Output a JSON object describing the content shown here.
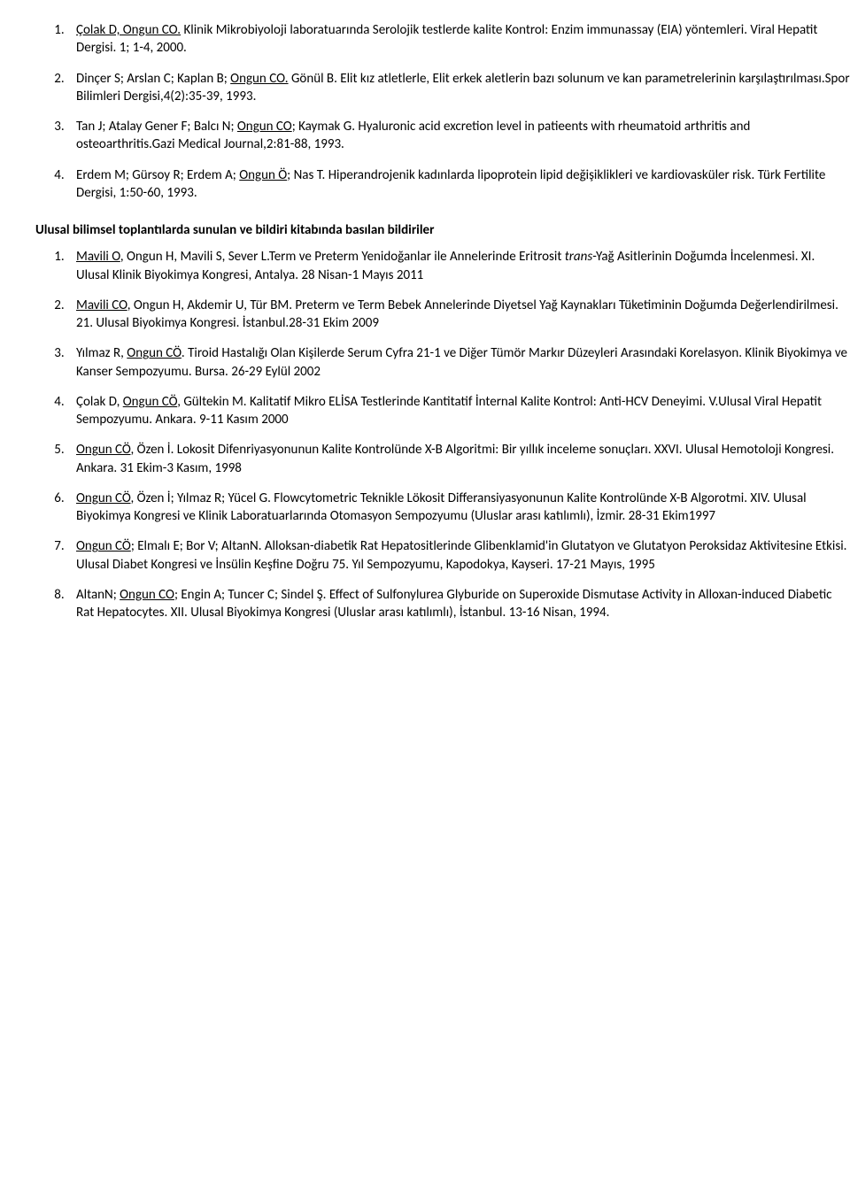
{
  "list1": [
    "<span class=\"u\">Çolak D, Ongun CO.</span> Klinik Mikrobiyoloji laboratuarında Serolojik testlerde kalite Kontrol: Enzim immunassay (EIA) yöntemleri. Viral Hepatit Dergisi. 1; 1-4, 2000.",
    "Dinçer S; Arslan C; Kaplan B; <span class=\"u\">Ongun CO.</span> Gönül B. Elit kız atletlerle, Elit erkek aletlerin bazı solunum ve kan parametrelerinin karşılaştırılması.Spor Bilimleri Dergisi,4(2):35-39, 1993.",
    "Tan J; Atalay Gener F; Balcı N; <span class=\"u\">Ongun CO</span>; Kaymak G. Hyaluronic acid excretion level in patieents with rheumatoid arthritis and osteoarthritis.Gazi Medical Journal,2:81-88, 1993.",
    "Erdem M; Gürsoy R; Erdem A; <span class=\"u\">Ongun Ö</span>; Nas T. Hiperandrojenik kadınlarda lipoprotein lipid değişiklikleri ve kardiovasküler risk. Türk Fertilite Dergisi, 1:50-60, 1993."
  ],
  "heading": "Ulusal bilimsel toplantılarda sunulan ve bildiri kitabında basılan bildiriler",
  "list2": [
    "<span class=\"u\">Mavili O</span>, Ongun H, Mavili S, Sever L.Term ve Preterm Yenidoğanlar ile Annelerinde Eritrosit <span class=\"i\">trans</span>-Yağ Asitlerinin Doğumda İncelenmesi. XI. Ulusal Klinik Biyokimya Kongresi, Antalya. 28 Nisan-1 Mayıs 2011",
    "<span class=\"u\">Mavili CO</span>, Ongun H, Akdemir U, Tür BM. Preterm ve Term Bebek Annelerinde Diyetsel Yağ Kaynakları Tüketiminin Doğumda Değerlendirilmesi. 21. Ulusal Biyokimya Kongresi. İstanbul.28-31 Ekim 2009",
    "Yılmaz R, <span class=\"u\">Ongun CÖ</span>. Tiroid Hastalığı Olan Kişilerde Serum Cyfra 21-1 ve Diğer Tümör Markır Düzeyleri Arasındaki Korelasyon. Klinik Biyokimya ve Kanser Sempozyumu. Bursa. 26-29 Eylül 2002",
    "Çolak D, <span class=\"u\">Ongun CÖ</span>, Gültekin M. Kalitatif Mikro ELİSA Testlerinde Kantitatif İnternal Kalite Kontrol: Anti-HCV Deneyimi. V.Ulusal Viral Hepatit Sempozyumu. Ankara. 9-11 Kasım 2000",
    "<span class=\"u\">Ongun CÖ</span>, Özen İ. Lokosit Difenriyasyonunun Kalite Kontrolünde X-B Algoritmi: Bir yıllık inceleme sonuçları. XXVI. Ulusal Hemotoloji Kongresi. Ankara. 31 Ekim-3 Kasım, 1998",
    "<span class=\"u\">Ongun CÖ</span>, Özen İ; Yılmaz R; Yücel G. Flowcytometric Teknikle Lökosit Differansiyasyonunun Kalite Kontrolünde X-B Algorotmi. XIV. Ulusal Biyokimya Kongresi ve Klinik Laboratuarlarında Otomasyon Sempozyumu (Uluslar arası katılımlı), İzmir. 28-31 Ekim1997",
    "<span class=\"u\">Ongun CÖ</span>; Elmalı E; Bor V; AltanN. Alloksan-diabetik Rat Hepatositlerinde Glibenklamid'in Glutatyon ve Glutatyon Peroksidaz Aktivitesine Etkisi. Ulusal Diabet Kongresi ve İnsülin Keşfine Doğru 75. Yıl Sempozyumu, Kapodokya, Kayseri. 17-21 Mayıs, 1995",
    "AltanN; <span class=\"u\">Ongun CO</span>; Engin A; Tuncer C; Sindel Ş. Effect of Sulfonylurea Glyburide on Superoxide Dismutase Activity in Alloxan-induced Diabetic Rat Hepatocytes. XII. Ulusal Biyokimya Kongresi (Uluslar arası katılımlı), İstanbul. 13-16 Nisan, 1994."
  ]
}
